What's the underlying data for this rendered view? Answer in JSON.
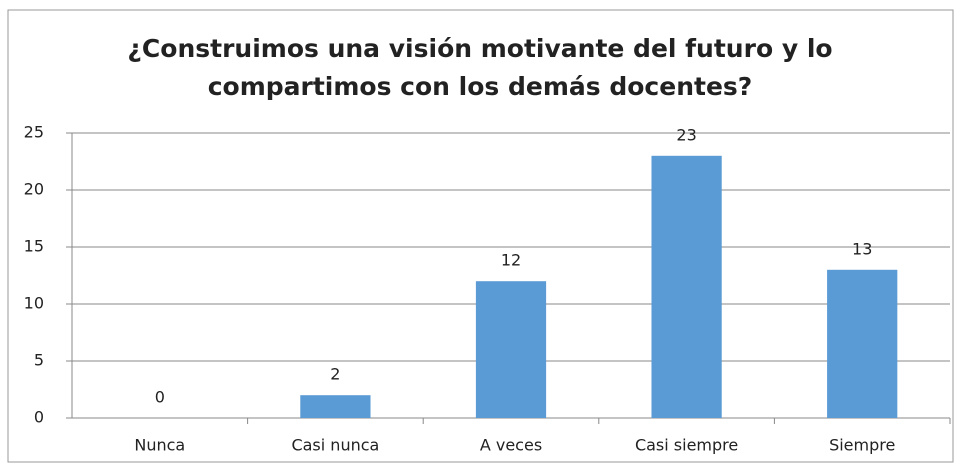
{
  "chart_data": {
    "type": "bar",
    "title": "¿Construimos una visión motivante del futuro y lo compartimos con los demás docentes?",
    "categories": [
      "Nunca",
      "Casi nunca",
      "A veces",
      "Casi siempre",
      "Siempre"
    ],
    "values": [
      0,
      2,
      12,
      23,
      13
    ],
    "color": "#5b9bd5",
    "ylim": [
      0,
      25
    ],
    "yticks": [
      0,
      5,
      10,
      15,
      20,
      25
    ],
    "grid": true
  }
}
